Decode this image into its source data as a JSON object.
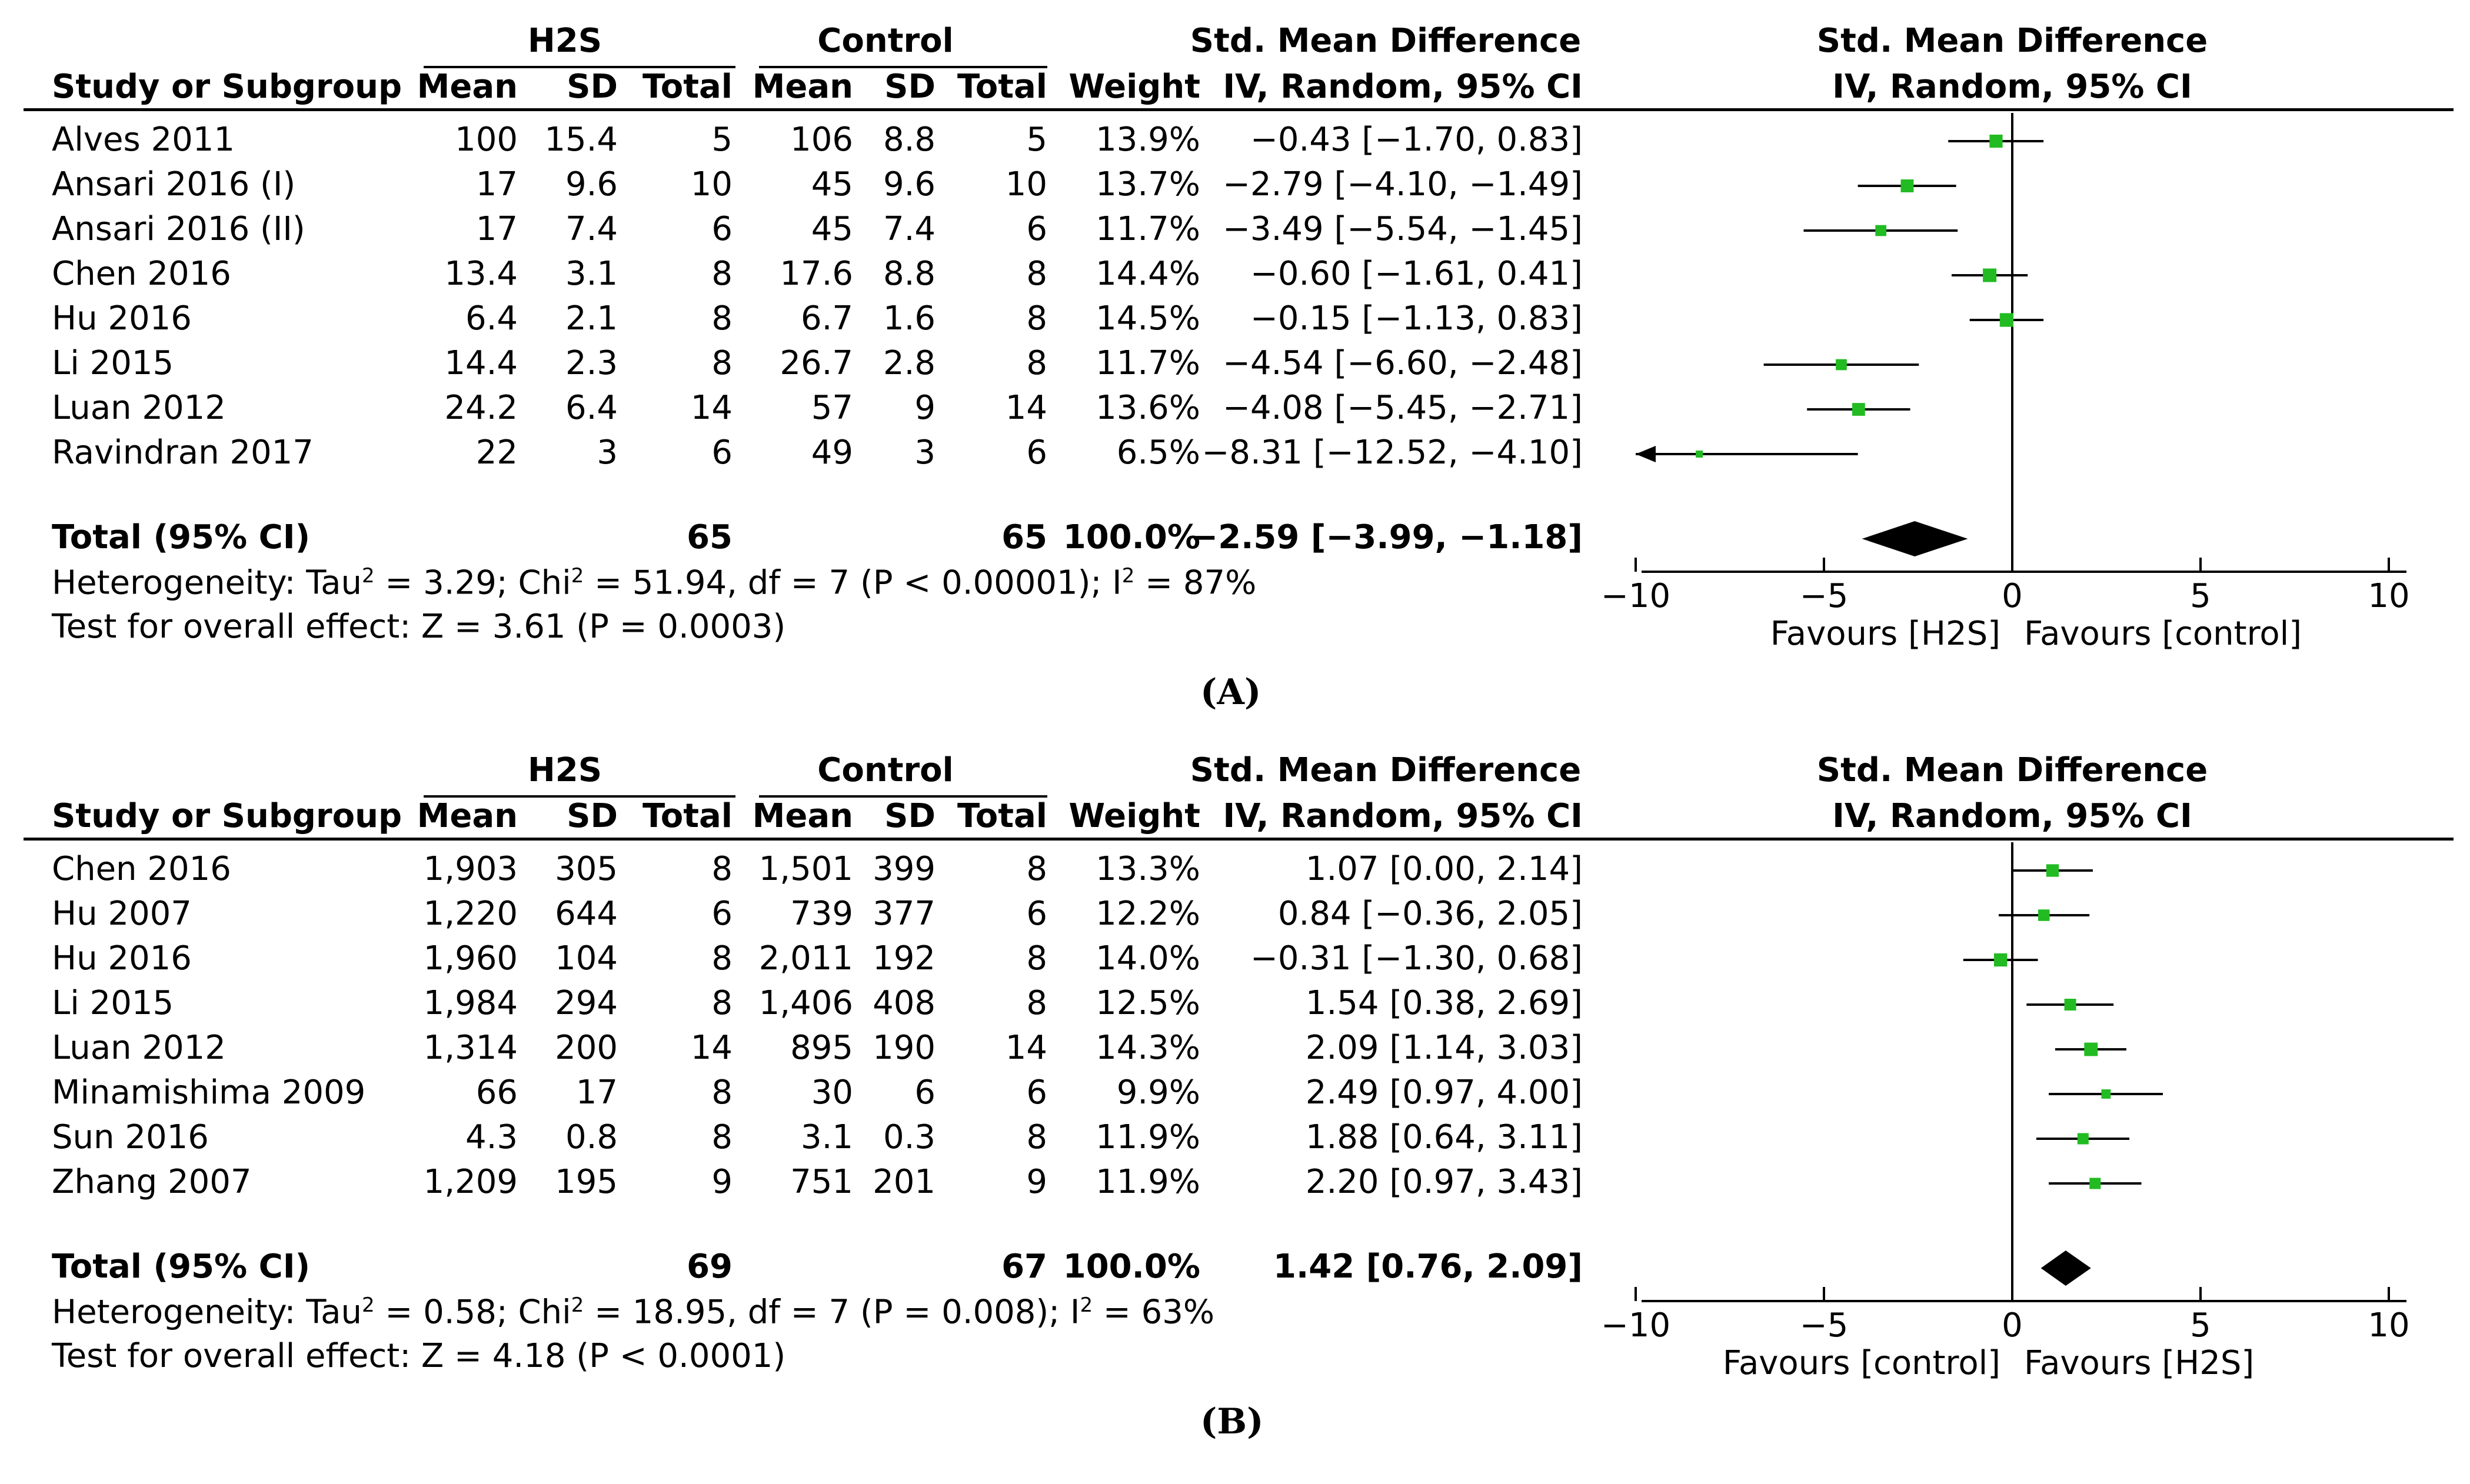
{
  "chart_data": [
    {
      "type": "forest",
      "panel_label": "(A)",
      "group_experimental": "H2S",
      "group_control": "Control",
      "effect_header": "Std. Mean Difference",
      "effect_subheader": "IV, Random, 95% CI",
      "columns": [
        "Study or Subgroup",
        "Mean",
        "SD",
        "Total",
        "Mean",
        "SD",
        "Total",
        "Weight",
        "IV, Random, 95% CI"
      ],
      "studies": [
        {
          "study": "Alves 2011",
          "exp_mean": "100",
          "exp_sd": "15.4",
          "exp_total": "5",
          "ctrl_mean": "106",
          "ctrl_sd": "8.8",
          "ctrl_total": "5",
          "weight": "13.9%",
          "ci_text": "−0.43 [−1.70, 0.83]",
          "est": -0.43,
          "lo": -1.7,
          "hi": 0.83
        },
        {
          "study": "Ansari 2016 (I)",
          "exp_mean": "17",
          "exp_sd": "9.6",
          "exp_total": "10",
          "ctrl_mean": "45",
          "ctrl_sd": "9.6",
          "ctrl_total": "10",
          "weight": "13.7%",
          "ci_text": "−2.79 [−4.10, −1.49]",
          "est": -2.79,
          "lo": -4.1,
          "hi": -1.49
        },
        {
          "study": "Ansari 2016 (II)",
          "exp_mean": "17",
          "exp_sd": "7.4",
          "exp_total": "6",
          "ctrl_mean": "45",
          "ctrl_sd": "7.4",
          "ctrl_total": "6",
          "weight": "11.7%",
          "ci_text": "−3.49 [−5.54, −1.45]",
          "est": -3.49,
          "lo": -5.54,
          "hi": -1.45
        },
        {
          "study": "Chen 2016",
          "exp_mean": "13.4",
          "exp_sd": "3.1",
          "exp_total": "8",
          "ctrl_mean": "17.6",
          "ctrl_sd": "8.8",
          "ctrl_total": "8",
          "weight": "14.4%",
          "ci_text": "−0.60 [−1.61, 0.41]",
          "est": -0.6,
          "lo": -1.61,
          "hi": 0.41
        },
        {
          "study": "Hu 2016",
          "exp_mean": "6.4",
          "exp_sd": "2.1",
          "exp_total": "8",
          "ctrl_mean": "6.7",
          "ctrl_sd": "1.6",
          "ctrl_total": "8",
          "weight": "14.5%",
          "ci_text": "−0.15 [−1.13, 0.83]",
          "est": -0.15,
          "lo": -1.13,
          "hi": 0.83
        },
        {
          "study": "Li 2015",
          "exp_mean": "14.4",
          "exp_sd": "2.3",
          "exp_total": "8",
          "ctrl_mean": "26.7",
          "ctrl_sd": "2.8",
          "ctrl_total": "8",
          "weight": "11.7%",
          "ci_text": "−4.54 [−6.60, −2.48]",
          "est": -4.54,
          "lo": -6.6,
          "hi": -2.48
        },
        {
          "study": "Luan 2012",
          "exp_mean": "24.2",
          "exp_sd": "6.4",
          "exp_total": "14",
          "ctrl_mean": "57",
          "ctrl_sd": "9",
          "ctrl_total": "14",
          "weight": "13.6%",
          "ci_text": "−4.08 [−5.45, −2.71]",
          "est": -4.08,
          "lo": -5.45,
          "hi": -2.71
        },
        {
          "study": "Ravindran 2017",
          "exp_mean": "22",
          "exp_sd": "3",
          "exp_total": "6",
          "ctrl_mean": "49",
          "ctrl_sd": "3",
          "ctrl_total": "6",
          "weight": "6.5%",
          "ci_text": "−8.31 [−12.52, −4.10]",
          "est": -8.31,
          "lo": -12.52,
          "hi": -4.1
        }
      ],
      "total": {
        "label": "Total (95% CI)",
        "exp_total": "65",
        "ctrl_total": "65",
        "weight": "100.0%",
        "ci_text": "−2.59 [−3.99, −1.18]",
        "est": -2.59,
        "lo": -3.99,
        "hi": -1.18
      },
      "heterogeneity": {
        "prefix": "Heterogeneity: Tau",
        "tau2": " = 3.29; Chi",
        "chi2": " = 51.94, df = 7 (P < 0.00001); I",
        "i2": " = 87%",
        "sup": "2"
      },
      "overall_effect": "Test for overall effect: Z = 3.61 (P = 0.0003)",
      "xlim": [
        -10,
        10
      ],
      "xticks": [
        -10,
        -5,
        0,
        5,
        10
      ],
      "xtick_labels": [
        "−10",
        "−5",
        "0",
        "5",
        "10"
      ],
      "favours_left": "Favours [H2S]",
      "favours_right": "Favours [control]"
    },
    {
      "type": "forest",
      "panel_label": "(B)",
      "group_experimental": "H2S",
      "group_control": "Control",
      "effect_header": "Std. Mean Difference",
      "effect_subheader": "IV, Random, 95% CI",
      "columns": [
        "Study or Subgroup",
        "Mean",
        "SD",
        "Total",
        "Mean",
        "SD",
        "Total",
        "Weight",
        "IV, Random, 95% CI"
      ],
      "studies": [
        {
          "study": "Chen 2016",
          "exp_mean": "1,903",
          "exp_sd": "305",
          "exp_total": "8",
          "ctrl_mean": "1,501",
          "ctrl_sd": "399",
          "ctrl_total": "8",
          "weight": "13.3%",
          "ci_text": "1.07 [0.00, 2.14]",
          "est": 1.07,
          "lo": 0.0,
          "hi": 2.14
        },
        {
          "study": "Hu 2007",
          "exp_mean": "1,220",
          "exp_sd": "644",
          "exp_total": "6",
          "ctrl_mean": "739",
          "ctrl_sd": "377",
          "ctrl_total": "6",
          "weight": "12.2%",
          "ci_text": "0.84 [−0.36, 2.05]",
          "est": 0.84,
          "lo": -0.36,
          "hi": 2.05
        },
        {
          "study": "Hu 2016",
          "exp_mean": "1,960",
          "exp_sd": "104",
          "exp_total": "8",
          "ctrl_mean": "2,011",
          "ctrl_sd": "192",
          "ctrl_total": "8",
          "weight": "14.0%",
          "ci_text": "−0.31 [−1.30, 0.68]",
          "est": -0.31,
          "lo": -1.3,
          "hi": 0.68
        },
        {
          "study": "Li 2015",
          "exp_mean": "1,984",
          "exp_sd": "294",
          "exp_total": "8",
          "ctrl_mean": "1,406",
          "ctrl_sd": "408",
          "ctrl_total": "8",
          "weight": "12.5%",
          "ci_text": "1.54 [0.38, 2.69]",
          "est": 1.54,
          "lo": 0.38,
          "hi": 2.69
        },
        {
          "study": "Luan 2012",
          "exp_mean": "1,314",
          "exp_sd": "200",
          "exp_total": "14",
          "ctrl_mean": "895",
          "ctrl_sd": "190",
          "ctrl_total": "14",
          "weight": "14.3%",
          "ci_text": "2.09 [1.14, 3.03]",
          "est": 2.09,
          "lo": 1.14,
          "hi": 3.03
        },
        {
          "study": "Minamishima 2009",
          "exp_mean": "66",
          "exp_sd": "17",
          "exp_total": "8",
          "ctrl_mean": "30",
          "ctrl_sd": "6",
          "ctrl_total": "6",
          "weight": "9.9%",
          "ci_text": "2.49 [0.97, 4.00]",
          "est": 2.49,
          "lo": 0.97,
          "hi": 4.0
        },
        {
          "study": "Sun 2016",
          "exp_mean": "4.3",
          "exp_sd": "0.8",
          "exp_total": "8",
          "ctrl_mean": "3.1",
          "ctrl_sd": "0.3",
          "ctrl_total": "8",
          "weight": "11.9%",
          "ci_text": "1.88 [0.64, 3.11]",
          "est": 1.88,
          "lo": 0.64,
          "hi": 3.11
        },
        {
          "study": "Zhang 2007",
          "exp_mean": "1,209",
          "exp_sd": "195",
          "exp_total": "9",
          "ctrl_mean": "751",
          "ctrl_sd": "201",
          "ctrl_total": "9",
          "weight": "11.9%",
          "ci_text": "2.20 [0.97, 3.43]",
          "est": 2.2,
          "lo": 0.97,
          "hi": 3.43
        }
      ],
      "total": {
        "label": "Total (95% CI)",
        "exp_total": "69",
        "ctrl_total": "67",
        "weight": "100.0%",
        "ci_text": "1.42 [0.76, 2.09]",
        "est": 1.42,
        "lo": 0.76,
        "hi": 2.09
      },
      "heterogeneity": {
        "prefix": "Heterogeneity: Tau",
        "tau2": " = 0.58; Chi",
        "chi2": " = 18.95, df = 7 (P = 0.008); I",
        "i2": " = 63%",
        "sup": "2"
      },
      "overall_effect": "Test for overall effect: Z = 4.18 (P < 0.0001)",
      "xlim": [
        -10,
        10
      ],
      "xticks": [
        -10,
        -5,
        0,
        5,
        10
      ],
      "xtick_labels": [
        "−10",
        "−5",
        "0",
        "5",
        "10"
      ],
      "favours_left": "Favours [control]",
      "favours_right": "Favours [H2S]"
    }
  ],
  "colors": {
    "marker": "#22bb22",
    "line": "#000000",
    "diamond": "#000000"
  }
}
